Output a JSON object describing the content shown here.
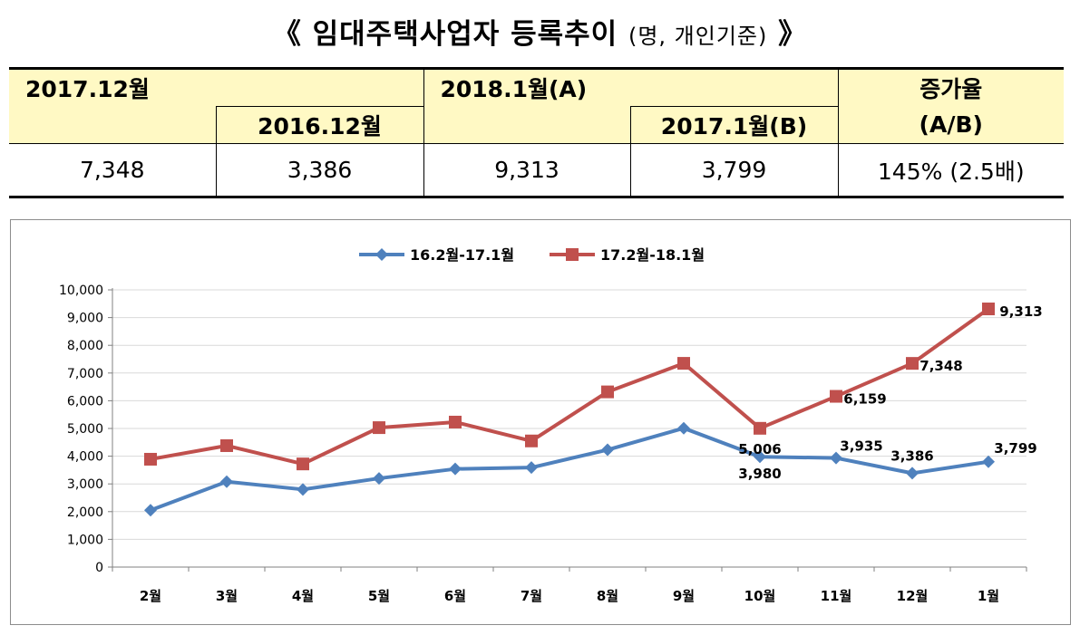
{
  "title": {
    "open": "《",
    "main": "임대주택사업자 등록추이",
    "sub": "(명, 개인기준)",
    "close": "》"
  },
  "table": {
    "h_2017_12": "2017.12월",
    "h_2016_12": "2016.12월",
    "h_2018_1": "2018.1월(A)",
    "h_2017_1": "2017.1월(B)",
    "h_rate_1": "증가율",
    "h_rate_2": "(A/B)",
    "v_2017_12": "7,348",
    "v_2016_12": "3,386",
    "v_2018_1": "9,313",
    "v_2017_1": "3,799",
    "v_rate": "145% (2.5배)"
  },
  "chart_data": {
    "type": "line",
    "categories": [
      "2월",
      "3월",
      "4월",
      "5월",
      "6월",
      "7월",
      "8월",
      "9월",
      "10월",
      "11월",
      "12월",
      "1월"
    ],
    "series": [
      {
        "name": "16.2월-17.1월",
        "color": "#4f81bd",
        "marker": "diamond",
        "values": [
          2050,
          3080,
          2800,
          3200,
          3540,
          3590,
          4230,
          5010,
          3980,
          3935,
          3386,
          3799
        ]
      },
      {
        "name": "17.2월-18.1월",
        "color": "#c0504d",
        "marker": "square",
        "values": [
          3890,
          4380,
          3720,
          5030,
          5230,
          4550,
          6320,
          7350,
          5006,
          6159,
          7348,
          9313
        ]
      }
    ],
    "data_labels": [
      {
        "series": 1,
        "index": 8,
        "text": "5,006"
      },
      {
        "series": 1,
        "index": 9,
        "text": "6,159"
      },
      {
        "series": 1,
        "index": 10,
        "text": "7,348"
      },
      {
        "series": 1,
        "index": 11,
        "text": "9,313"
      },
      {
        "series": 0,
        "index": 8,
        "text": "3,980"
      },
      {
        "series": 0,
        "index": 9,
        "text": "3,935"
      },
      {
        "series": 0,
        "index": 10,
        "text": "3,386"
      },
      {
        "series": 0,
        "index": 11,
        "text": "3,799"
      }
    ],
    "y_ticks": [
      "0",
      "1,000",
      "2,000",
      "3,000",
      "4,000",
      "5,000",
      "6,000",
      "7,000",
      "8,000",
      "9,000",
      "10,000"
    ],
    "ylim": [
      0,
      10000
    ],
    "grid": true,
    "legend": "top-center",
    "title": "",
    "xlabel": "",
    "ylabel": ""
  }
}
